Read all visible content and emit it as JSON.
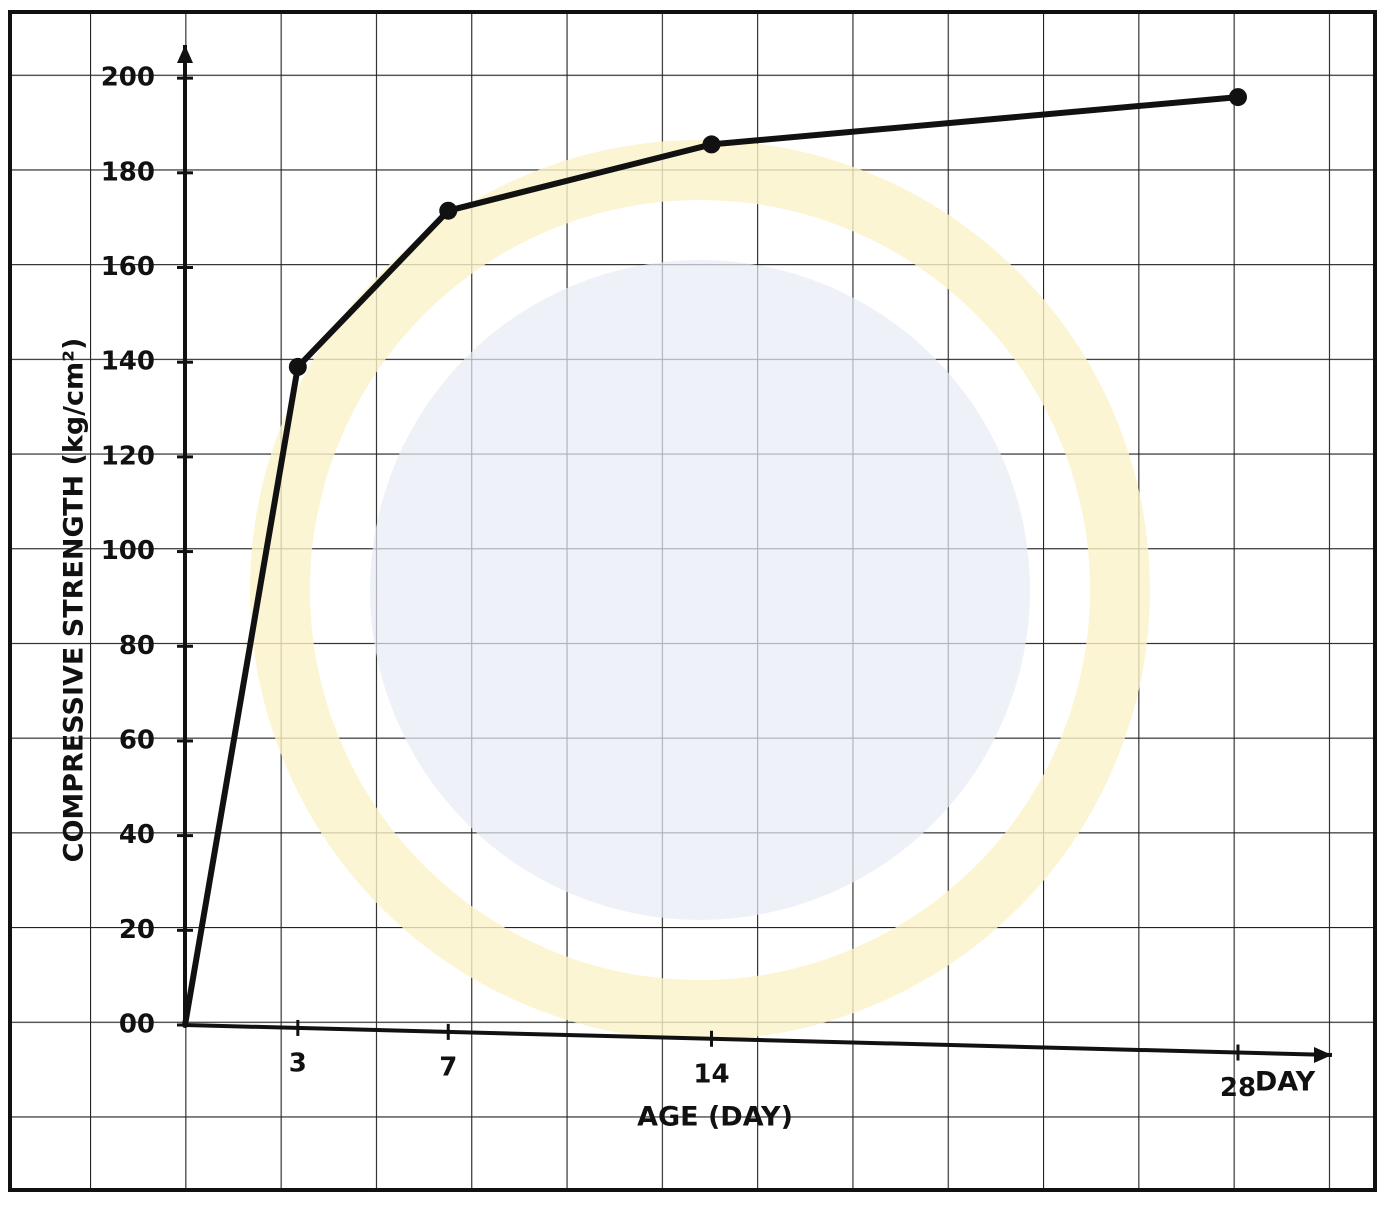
{
  "chart_data": {
    "type": "line",
    "x_label": "AGE (DAY)",
    "x_unit_label": "DAY",
    "y_label": "COMPRESSIVE STRENGTH (kg/cm²)",
    "x": [
      0,
      3,
      7,
      14,
      28
    ],
    "series": [
      {
        "color": "#111111",
        "values": [
          0,
          139,
          172,
          186,
          196
        ]
      }
    ],
    "xlim": [
      0,
      30.5
    ],
    "ylim": [
      0,
      207
    ],
    "xticks": [
      3,
      7,
      14,
      28
    ],
    "yticks": [
      {
        "value": 0,
        "label": "00"
      },
      20,
      40,
      60,
      80,
      100,
      120,
      140,
      160,
      180,
      200
    ]
  }
}
